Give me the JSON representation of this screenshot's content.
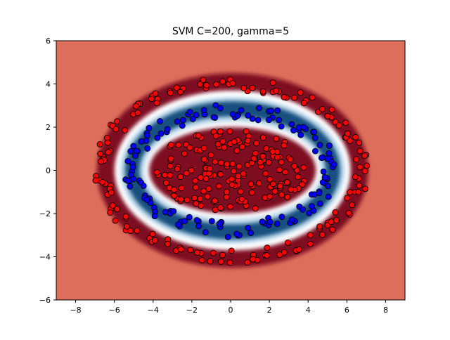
{
  "chart_data": {
    "type": "scatter",
    "title": "SVM C=200, gamma=5",
    "xlabel": "",
    "ylabel": "",
    "xlim": [
      -9,
      9
    ],
    "ylim": [
      -6,
      6
    ],
    "xticks": [
      -8,
      -6,
      -4,
      -2,
      0,
      2,
      4,
      6,
      8
    ],
    "yticks": [
      -6,
      -4,
      -2,
      0,
      2,
      4,
      6
    ],
    "grid": false,
    "legend": "none",
    "colors": {
      "class_outer": "#ff0000",
      "class_ring": "#0000ff",
      "background_outer": "#dc6e5b",
      "background_margin_red": "#7f0a22",
      "background_margin_blue": "#184f80",
      "background_boundary": "#ffffff"
    },
    "decision_region": {
      "description_kind": "ring",
      "center": [
        0.1,
        0.0
      ],
      "inner_radius": [
        4.5,
        2.2
      ],
      "outer_radius": [
        6.0,
        3.6
      ]
    },
    "series": [
      {
        "class": "outer_ring_red",
        "color": "#ff0000",
        "generator": {
          "kind": "ring",
          "radius_x": [
            6.3,
            7.1
          ],
          "radius_y": [
            3.7,
            4.3
          ],
          "count": 150
        }
      },
      {
        "class": "middle_ring_blue",
        "color": "#0000ff",
        "generator": {
          "kind": "ring",
          "radius_x": [
            4.7,
            5.5
          ],
          "radius_y": [
            2.4,
            3.1
          ],
          "count": 140
        }
      },
      {
        "class": "inner_cluster_red",
        "color": "#ff0000",
        "generator": {
          "kind": "ellipse_fill",
          "radius_x": [
            0,
            4.0
          ],
          "radius_y": [
            0,
            1.9
          ],
          "count": 170
        }
      }
    ]
  }
}
